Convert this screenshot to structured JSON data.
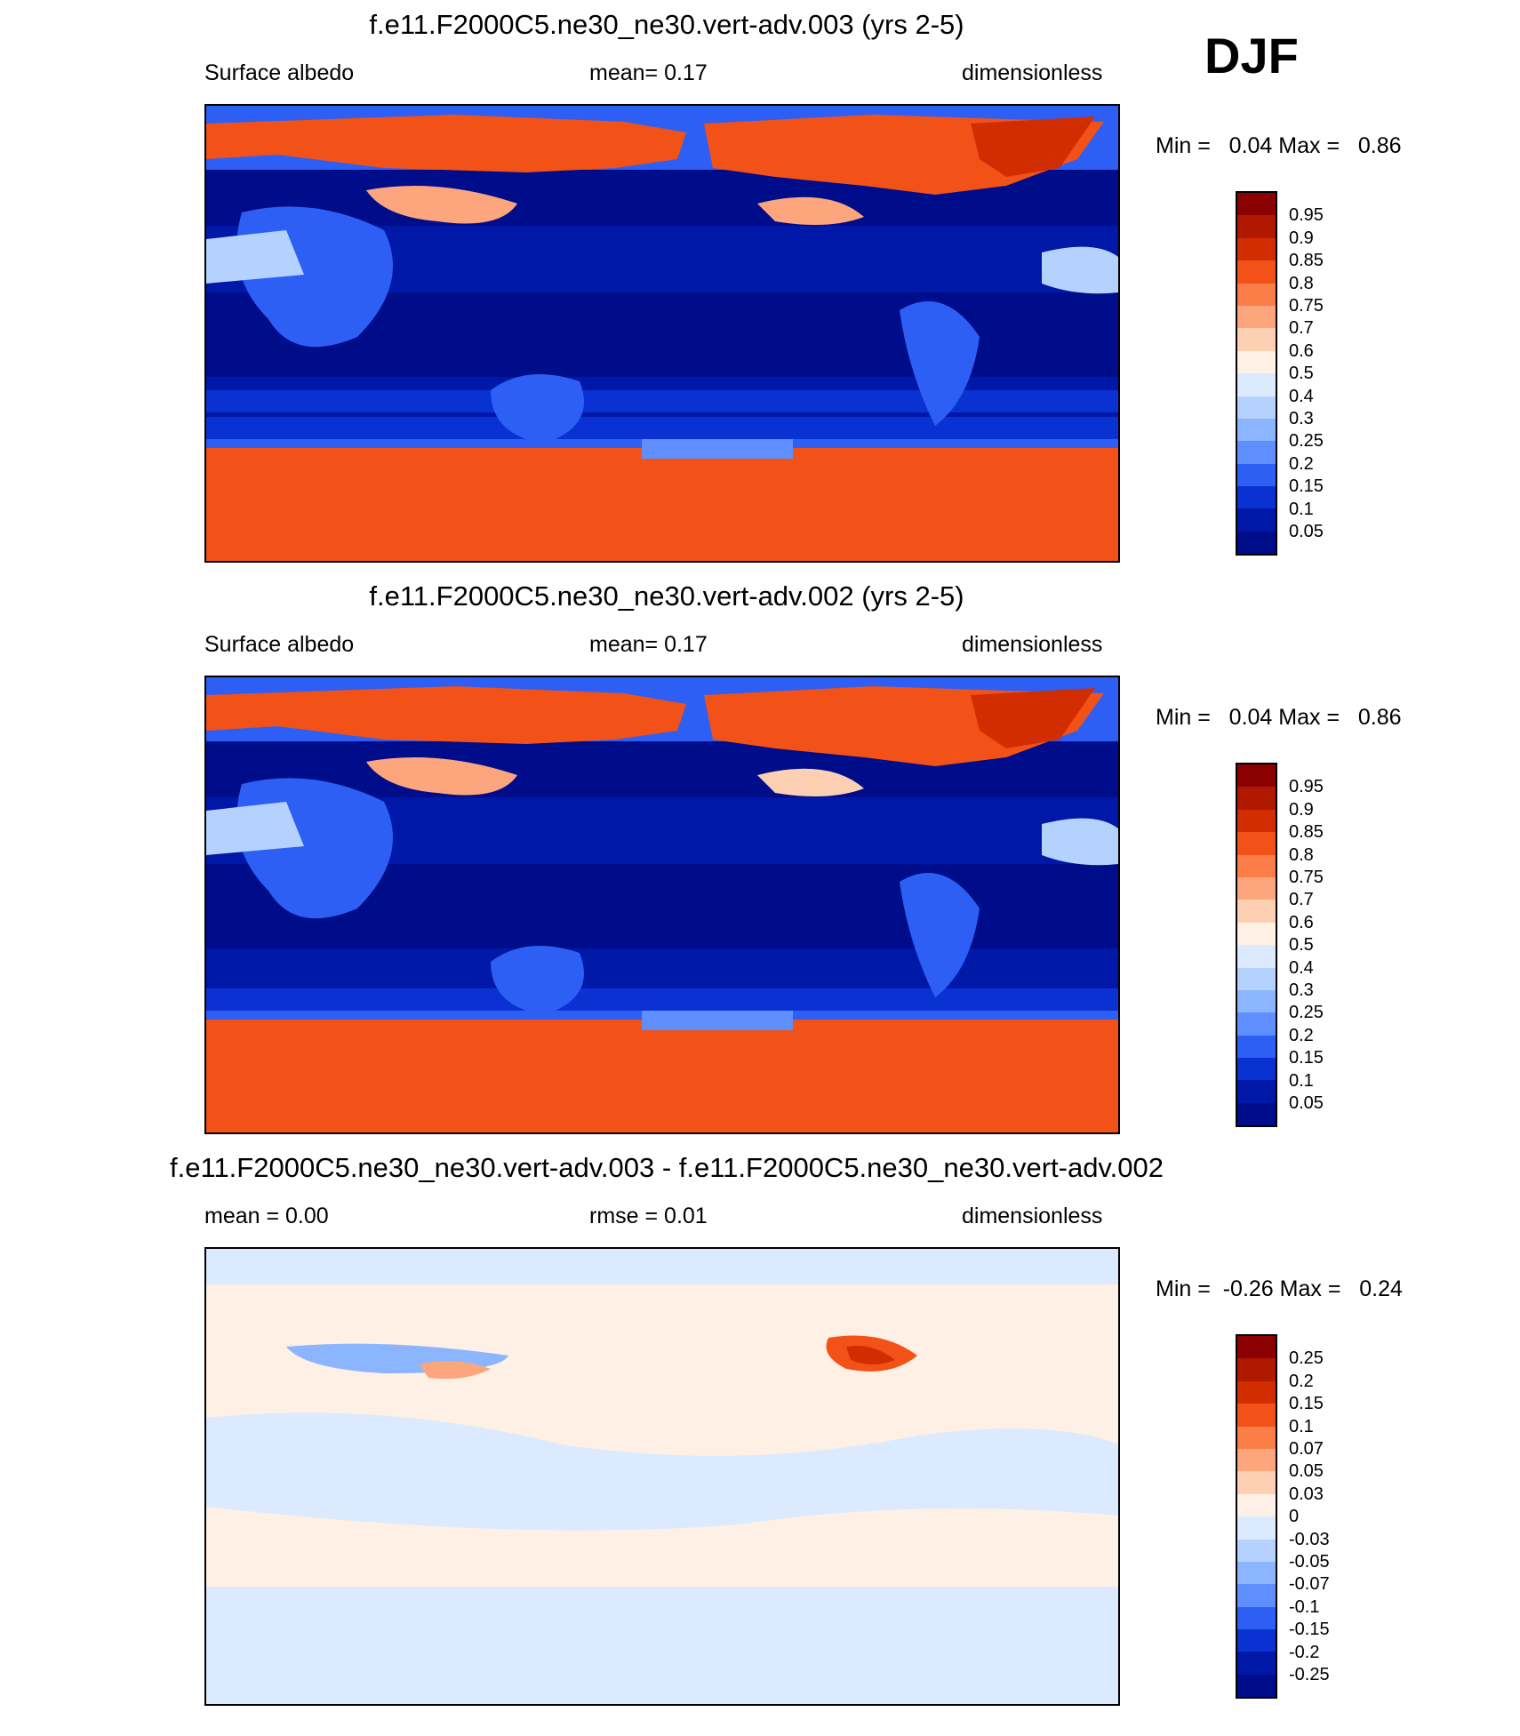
{
  "season": "DJF",
  "panels": [
    {
      "title": "f.e11.F2000C5.ne30_ne30.vert-adv.003 (yrs 2-5)",
      "left_label": "Surface albedo",
      "mid_label": "mean=   0.17",
      "right_label": "dimensionless",
      "minmax": "Min =   0.04 Max =   0.86",
      "colorbar": {
        "labels": [
          "0.95",
          "0.9",
          "0.85",
          "0.8",
          "0.75",
          "0.7",
          "0.6",
          "0.5",
          "0.4",
          "0.3",
          "0.25",
          "0.2",
          "0.15",
          "0.1",
          "0.05"
        ],
        "colors": [
          "#8b0000",
          "#b01800",
          "#d22d00",
          "#f25218",
          "#fb7d47",
          "#fda57c",
          "#fdcfb3",
          "#fff0e5",
          "#dbeaff",
          "#b5d2ff",
          "#8cb5ff",
          "#5f8fff",
          "#2d5ff5",
          "#0a32d2",
          "#0018a8",
          "#000d8a"
        ]
      }
    },
    {
      "title": "f.e11.F2000C5.ne30_ne30.vert-adv.002 (yrs 2-5)",
      "left_label": "Surface albedo",
      "mid_label": "mean=   0.17",
      "right_label": "dimensionless",
      "minmax": "Min =   0.04 Max =   0.86",
      "colorbar": {
        "labels": [
          "0.95",
          "0.9",
          "0.85",
          "0.8",
          "0.75",
          "0.7",
          "0.6",
          "0.5",
          "0.4",
          "0.3",
          "0.25",
          "0.2",
          "0.15",
          "0.1",
          "0.05"
        ],
        "colors": [
          "#8b0000",
          "#b01800",
          "#d22d00",
          "#f25218",
          "#fb7d47",
          "#fda57c",
          "#fdcfb3",
          "#fff0e5",
          "#dbeaff",
          "#b5d2ff",
          "#8cb5ff",
          "#5f8fff",
          "#2d5ff5",
          "#0a32d2",
          "#0018a8",
          "#000d8a"
        ]
      }
    },
    {
      "title": "f.e11.F2000C5.ne30_ne30.vert-adv.003 - f.e11.F2000C5.ne30_ne30.vert-adv.002",
      "left_label": "mean =   0.00",
      "mid_label": "rmse =   0.01",
      "right_label": "dimensionless",
      "minmax": "Min =  -0.26 Max =   0.24",
      "colorbar": {
        "labels": [
          "0.25",
          "0.2",
          "0.15",
          "0.1",
          "0.07",
          "0.05",
          "0.03",
          "0",
          "-0.03",
          "-0.05",
          "-0.07",
          "-0.1",
          "-0.15",
          "-0.2",
          "-0.25"
        ],
        "colors": [
          "#8b0000",
          "#b01800",
          "#d22d00",
          "#f25218",
          "#fb7d47",
          "#fda57c",
          "#fdcfb3",
          "#fff0e5",
          "#dbeaff",
          "#b5d2ff",
          "#8cb5ff",
          "#5f8fff",
          "#2d5ff5",
          "#0a32d2",
          "#0018a8",
          "#000d8a"
        ]
      }
    }
  ]
}
